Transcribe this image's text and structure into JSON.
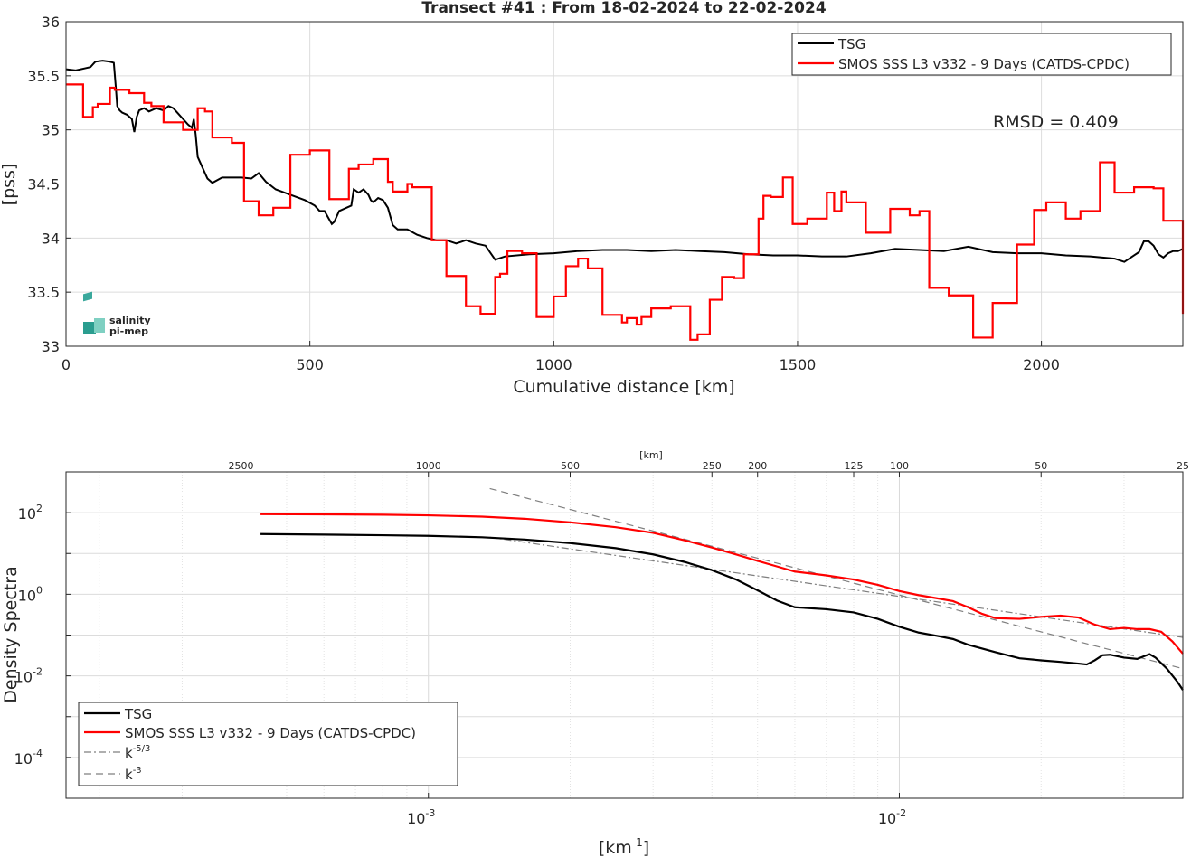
{
  "chart_data": [
    {
      "type": "line",
      "title": "Transect #41 : From 18-02-2024 to 22-02-2024",
      "xlabel": "Cumulative distance [km]",
      "ylabel": "[pss]",
      "xlim": [
        0,
        2290
      ],
      "ylim": [
        33,
        36
      ],
      "x_ticks": [
        "0",
        "500",
        "1000",
        "1500",
        "2000"
      ],
      "y_ticks": [
        "33",
        "33.5",
        "34",
        "34.5",
        "35",
        "35.5",
        "36"
      ],
      "grid": true,
      "legend_position": "top-right",
      "annotation": "RMSD = 0.409",
      "logo_text": [
        "salinity",
        "pi-mep"
      ],
      "series": [
        {
          "name": "TSG",
          "color": "#000000",
          "x": [
            0,
            20,
            40,
            50,
            60,
            75,
            90,
            98,
            102,
            105,
            110,
            115,
            125,
            135,
            140,
            145,
            150,
            160,
            170,
            185,
            200,
            210,
            220,
            230,
            240,
            250,
            258,
            262,
            266,
            270,
            280,
            290,
            300,
            320,
            340,
            360,
            380,
            395,
            410,
            430,
            460,
            490,
            510,
            520,
            530,
            540,
            545,
            550,
            560,
            575,
            585,
            590,
            600,
            610,
            620,
            625,
            630,
            640,
            650,
            660,
            670,
            680,
            700,
            720,
            740,
            760,
            780,
            800,
            820,
            840,
            860,
            880,
            900,
            950,
            1000,
            1050,
            1100,
            1150,
            1200,
            1250,
            1300,
            1350,
            1400,
            1450,
            1500,
            1550,
            1600,
            1650,
            1700,
            1750,
            1800,
            1850,
            1900,
            1950,
            2000,
            2050,
            2100,
            2150,
            2170,
            2180,
            2190,
            2200,
            2210,
            2220,
            2230,
            2240,
            2250,
            2260,
            2270,
            2280,
            2290
          ],
          "y": [
            35.56,
            35.55,
            35.57,
            35.58,
            35.63,
            35.64,
            35.63,
            35.62,
            35.4,
            35.22,
            35.18,
            35.16,
            35.14,
            35.1,
            34.98,
            35.12,
            35.18,
            35.2,
            35.17,
            35.2,
            35.18,
            35.22,
            35.2,
            35.15,
            35.1,
            35.05,
            35.02,
            35.1,
            34.95,
            34.75,
            34.65,
            34.55,
            34.51,
            34.56,
            34.56,
            34.56,
            34.55,
            34.6,
            34.52,
            34.45,
            34.4,
            34.35,
            34.3,
            34.25,
            34.25,
            34.17,
            34.13,
            34.15,
            34.25,
            34.28,
            34.3,
            34.45,
            34.42,
            34.45,
            34.4,
            34.35,
            34.33,
            34.37,
            34.35,
            34.28,
            34.12,
            34.08,
            34.08,
            34.03,
            34.0,
            33.98,
            33.98,
            33.95,
            33.98,
            33.95,
            33.93,
            33.8,
            33.83,
            33.85,
            33.86,
            33.88,
            33.89,
            33.89,
            33.88,
            33.89,
            33.88,
            33.87,
            33.85,
            33.84,
            33.84,
            33.83,
            33.83,
            33.86,
            33.9,
            33.89,
            33.88,
            33.92,
            33.87,
            33.86,
            33.86,
            33.84,
            33.83,
            33.81,
            33.78,
            33.81,
            33.84,
            33.87,
            33.97,
            33.97,
            33.93,
            33.85,
            33.82,
            33.86,
            33.88,
            33.88,
            33.9
          ]
        },
        {
          "name": "SMOS SSS L3 v332 - 9 Days (CATDS-CPDC)",
          "color": "#ff0000",
          "step": true,
          "x": [
            0,
            35,
            55,
            65,
            90,
            100,
            130,
            160,
            175,
            200,
            240,
            270,
            285,
            300,
            340,
            365,
            395,
            425,
            460,
            500,
            540,
            580,
            600,
            630,
            660,
            670,
            700,
            710,
            750,
            780,
            820,
            850,
            880,
            890,
            905,
            935,
            965,
            1000,
            1025,
            1050,
            1070,
            1100,
            1140,
            1150,
            1170,
            1180,
            1200,
            1240,
            1280,
            1295,
            1320,
            1345,
            1370,
            1390,
            1420,
            1430,
            1445,
            1470,
            1490,
            1520,
            1560,
            1575,
            1590,
            1600,
            1640,
            1690,
            1730,
            1750,
            1770,
            1810,
            1860,
            1900,
            1950,
            1985,
            2010,
            2050,
            2080,
            2120,
            2150,
            2190,
            2230,
            2250,
            2290
          ],
          "y": [
            35.42,
            35.12,
            35.21,
            35.24,
            35.39,
            35.37,
            35.34,
            35.25,
            35.22,
            35.07,
            35.0,
            35.2,
            35.17,
            34.93,
            34.88,
            34.34,
            34.21,
            34.28,
            34.77,
            34.81,
            34.36,
            34.64,
            34.68,
            34.73,
            34.52,
            34.43,
            34.5,
            34.47,
            33.98,
            33.65,
            33.37,
            33.3,
            33.64,
            33.67,
            33.88,
            33.86,
            33.27,
            33.46,
            33.74,
            33.81,
            33.72,
            33.29,
            33.22,
            33.26,
            33.2,
            33.27,
            33.35,
            33.37,
            33.06,
            33.11,
            33.43,
            33.64,
            33.63,
            33.85,
            34.18,
            34.39,
            34.38,
            34.56,
            34.13,
            34.18,
            34.42,
            34.25,
            34.43,
            34.33,
            34.05,
            34.27,
            34.21,
            34.25,
            33.54,
            33.47,
            33.08,
            33.4,
            33.94,
            34.26,
            34.33,
            34.18,
            34.25,
            34.7,
            34.42,
            34.47,
            34.46,
            34.16,
            33.3
          ]
        }
      ]
    },
    {
      "type": "line",
      "title": "",
      "xlabel": "[km-1]",
      "xlabel_base": "[km",
      "xlabel_sup": "-1",
      "xlabel_end": "]",
      "ylabel": "Density Spectra",
      "x_scale": "log",
      "y_scale": "log",
      "xlim": [
        0.00017,
        0.04
      ],
      "ylim": [
        1e-05,
        1000
      ],
      "x_ticks": [
        {
          "value": 0.001,
          "base": "10",
          "exp": "-3"
        },
        {
          "value": 0.01,
          "base": "10",
          "exp": "-2"
        }
      ],
      "y_ticks": [
        {
          "value": 100,
          "base": "10",
          "exp": "2"
        },
        {
          "value": 1,
          "base": "10",
          "exp": "0"
        },
        {
          "value": 0.01,
          "base": "10",
          "exp": "-2"
        },
        {
          "value": 0.0001,
          "base": "10",
          "exp": "-4"
        }
      ],
      "top_axis_label": "[km]",
      "top_ticks": [
        {
          "km": 2500,
          "label": "2500"
        },
        {
          "km": 1000,
          "label": "1000"
        },
        {
          "km": 500,
          "label": "500"
        },
        {
          "km": 250,
          "label": "250"
        },
        {
          "km": 200,
          "label": "200"
        },
        {
          "km": 125,
          "label": "125"
        },
        {
          "km": 100,
          "label": "100"
        },
        {
          "km": 50,
          "label": "50"
        },
        {
          "km": 25,
          "label": "25"
        }
      ],
      "grid": true,
      "legend_position": "bottom-left",
      "series": [
        {
          "name": "TSG",
          "color": "#000000",
          "x": [
            0.00044,
            0.0006,
            0.0008,
            0.001,
            0.0013,
            0.0016,
            0.002,
            0.0025,
            0.003,
            0.0035,
            0.004,
            0.0045,
            0.005,
            0.0055,
            0.006,
            0.007,
            0.008,
            0.009,
            0.01,
            0.011,
            0.012,
            0.013,
            0.014,
            0.016,
            0.018,
            0.02,
            0.022,
            0.024,
            0.025,
            0.026,
            0.027,
            0.028,
            0.03,
            0.032,
            0.033,
            0.034,
            0.035,
            0.037,
            0.039,
            0.04
          ],
          "y": [
            30,
            29,
            28,
            27,
            25,
            22,
            18,
            13.5,
            9.5,
            6.2,
            3.9,
            2.3,
            1.25,
            0.7,
            0.48,
            0.43,
            0.36,
            0.25,
            0.16,
            0.115,
            0.096,
            0.08,
            0.058,
            0.038,
            0.027,
            0.024,
            0.022,
            0.02,
            0.019,
            0.024,
            0.032,
            0.033,
            0.028,
            0.026,
            0.03,
            0.034,
            0.028,
            0.015,
            0.007,
            0.0045
          ]
        },
        {
          "name": "SMOS SSS L3 v332 - 9 Days (CATDS-CPDC)",
          "color": "#ff0000",
          "x": [
            0.00044,
            0.0006,
            0.0008,
            0.001,
            0.0013,
            0.0016,
            0.002,
            0.0025,
            0.003,
            0.0035,
            0.004,
            0.0045,
            0.005,
            0.0055,
            0.006,
            0.007,
            0.008,
            0.009,
            0.01,
            0.011,
            0.012,
            0.013,
            0.014,
            0.015,
            0.016,
            0.018,
            0.02,
            0.022,
            0.024,
            0.026,
            0.028,
            0.03,
            0.032,
            0.034,
            0.036,
            0.038,
            0.04
          ],
          "y": [
            92,
            91,
            89,
            86,
            80,
            71,
            58,
            44,
            32,
            21,
            14,
            9.5,
            6.6,
            4.8,
            3.6,
            2.9,
            2.3,
            1.7,
            1.2,
            0.95,
            0.8,
            0.68,
            0.48,
            0.33,
            0.26,
            0.25,
            0.28,
            0.3,
            0.27,
            0.18,
            0.14,
            0.15,
            0.14,
            0.14,
            0.12,
            0.07,
            0.035
          ]
        },
        {
          "name": "k-5/3",
          "legend_base": "k",
          "legend_sup": "-5/3",
          "color": "#7f7f7f",
          "dash": "dashdot",
          "x": [
            0.00135,
            0.04
          ],
          "y": [
            25,
            0.088
          ]
        },
        {
          "name": "k-3",
          "legend_base": "k",
          "legend_sup": "-3",
          "color": "#7f7f7f",
          "dash": "dash",
          "x": [
            0.00135,
            0.04
          ],
          "y": [
            390,
            0.015
          ]
        }
      ]
    }
  ]
}
